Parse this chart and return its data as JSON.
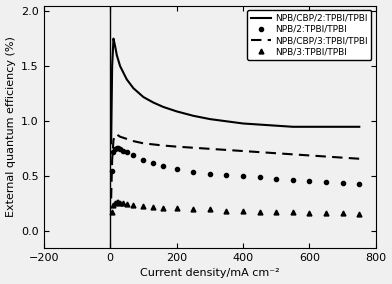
{
  "title": "",
  "xlabel": "Current density/mA cm⁻²",
  "ylabel": "External quantum efficiency (%)",
  "xlim": [
    -200,
    800
  ],
  "ylim": [
    -0.15,
    2.05
  ],
  "xticks": [
    -200,
    0,
    200,
    400,
    600,
    800
  ],
  "yticks": [
    0.0,
    0.5,
    1.0,
    1.5,
    2.0
  ],
  "legend_labels": [
    "NPB/CBP/2:TPBI/TPBI",
    "NPB/2:TPBI/TPBI",
    "NPB/CBP/3:TPBI/TPBI",
    "NPB/3:TPBI/TPBI"
  ],
  "line1_x": [
    3,
    6,
    10,
    15,
    20,
    30,
    40,
    50,
    70,
    100,
    130,
    160,
    200,
    250,
    300,
    350,
    400,
    450,
    500,
    550,
    600,
    650,
    700,
    750
  ],
  "line1_y": [
    0.8,
    1.5,
    1.75,
    1.68,
    1.6,
    1.5,
    1.44,
    1.38,
    1.3,
    1.22,
    1.17,
    1.13,
    1.09,
    1.05,
    1.02,
    1.0,
    0.98,
    0.97,
    0.96,
    0.95,
    0.95,
    0.95,
    0.95,
    0.95
  ],
  "line2_x": [
    5,
    10,
    15,
    20,
    25,
    30,
    40,
    50,
    70,
    100,
    130,
    160,
    200,
    250,
    300,
    350,
    400,
    450,
    500,
    550,
    600,
    650,
    700,
    750
  ],
  "line2_y": [
    0.55,
    0.72,
    0.75,
    0.76,
    0.76,
    0.75,
    0.73,
    0.72,
    0.69,
    0.65,
    0.62,
    0.59,
    0.57,
    0.54,
    0.52,
    0.51,
    0.5,
    0.49,
    0.48,
    0.47,
    0.46,
    0.45,
    0.44,
    0.43
  ],
  "line3_x": [
    3,
    6,
    10,
    15,
    20,
    25,
    30,
    40,
    50,
    70,
    100,
    130,
    160,
    200,
    250,
    300,
    350,
    400,
    450,
    500,
    550,
    600,
    650,
    700,
    750
  ],
  "line3_y": [
    0.3,
    0.65,
    0.83,
    0.88,
    0.88,
    0.87,
    0.86,
    0.85,
    0.84,
    0.82,
    0.8,
    0.79,
    0.78,
    0.77,
    0.76,
    0.75,
    0.74,
    0.73,
    0.72,
    0.71,
    0.7,
    0.69,
    0.68,
    0.67,
    0.66
  ],
  "line4_x": [
    5,
    10,
    15,
    20,
    25,
    30,
    40,
    50,
    70,
    100,
    130,
    160,
    200,
    250,
    300,
    350,
    400,
    450,
    500,
    550,
    600,
    650,
    700,
    750
  ],
  "line4_y": [
    0.18,
    0.24,
    0.26,
    0.27,
    0.27,
    0.26,
    0.26,
    0.25,
    0.24,
    0.23,
    0.22,
    0.21,
    0.21,
    0.2,
    0.2,
    0.19,
    0.19,
    0.18,
    0.18,
    0.18,
    0.17,
    0.17,
    0.17,
    0.16
  ],
  "background_color": "#f0f0f0",
  "font_size": 8,
  "legend_fontsize": 6.5
}
